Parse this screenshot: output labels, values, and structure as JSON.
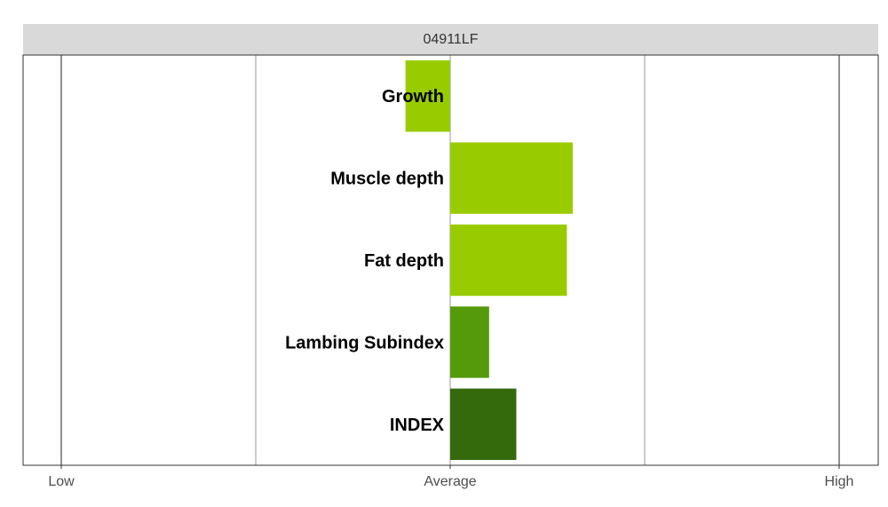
{
  "panel": {
    "strip_title": "04911LF"
  },
  "chart_data": {
    "type": "bar",
    "orientation": "horizontal",
    "title": "04911LF",
    "categories": [
      "Growth",
      "Muscle depth",
      "Fat depth",
      "Lambing Subindex",
      "INDEX"
    ],
    "values": [
      -0.23,
      0.63,
      0.6,
      0.2,
      0.34
    ],
    "colors": [
      "#99cc00",
      "#99cc00",
      "#99cc00",
      "#559a0a",
      "#356a0c"
    ],
    "xlim": [
      -2.0,
      2.0
    ],
    "x_ticks": [
      -2.0,
      0.0,
      2.0
    ],
    "x_tick_labels": [
      "Low",
      "Average",
      "High"
    ],
    "x_minor_gridlines": [
      -1.0,
      1.0
    ],
    "grid": true,
    "legend": "none"
  }
}
